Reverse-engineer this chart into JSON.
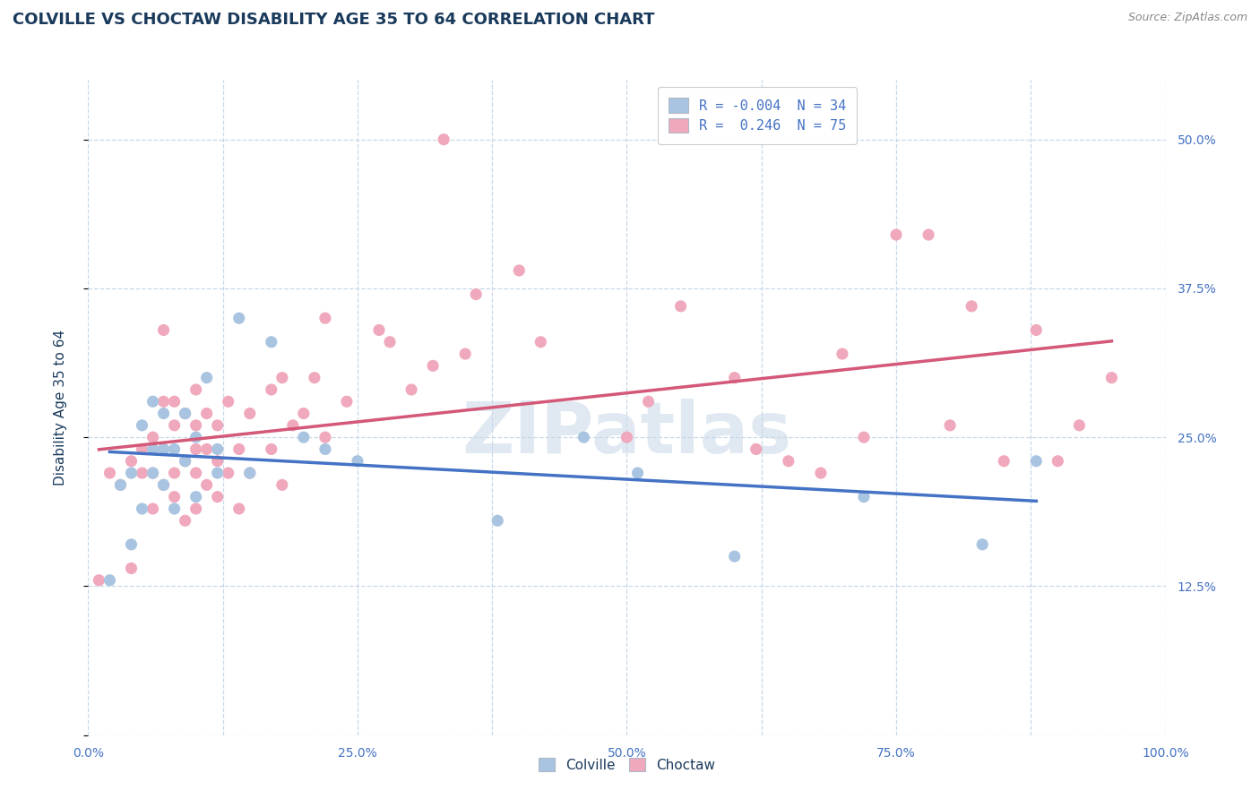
{
  "title": "COLVILLE VS CHOCTAW DISABILITY AGE 35 TO 64 CORRELATION CHART",
  "source_text": "Source: ZipAtlas.com",
  "ylabel": "Disability Age 35 to 64",
  "title_color": "#1a3a5c",
  "title_fontsize": 13,
  "watermark_text": "ZIPatlas",
  "colville_R": -0.004,
  "colville_N": 34,
  "choctaw_R": 0.246,
  "choctaw_N": 75,
  "colville_color": "#a8c4e0",
  "choctaw_color": "#f0a8bc",
  "colville_line_color": "#4472c4",
  "choctaw_line_color": "#d45878",
  "background_color": "#ffffff",
  "xlim": [
    0.0,
    1.0
  ],
  "ylim": [
    0.0,
    0.55
  ],
  "xtick_positions": [
    0.0,
    0.125,
    0.25,
    0.375,
    0.5,
    0.625,
    0.75,
    0.875,
    1.0
  ],
  "xticklabels": [
    "0.0%",
    "",
    "25.0%",
    "",
    "50.0%",
    "",
    "75.0%",
    "",
    "100.0%"
  ],
  "ytick_positions": [
    0.0,
    0.125,
    0.25,
    0.375,
    0.5
  ],
  "yticklabels": [
    "",
    "12.5%",
    "25.0%",
    "37.5%",
    "50.0%"
  ],
  "grid_color": "#c8d8e8",
  "colville_x": [
    0.02,
    0.03,
    0.04,
    0.04,
    0.05,
    0.05,
    0.06,
    0.06,
    0.06,
    0.07,
    0.07,
    0.07,
    0.08,
    0.08,
    0.09,
    0.09,
    0.1,
    0.1,
    0.11,
    0.12,
    0.12,
    0.14,
    0.15,
    0.17,
    0.2,
    0.22,
    0.25,
    0.38,
    0.46,
    0.51,
    0.6,
    0.72,
    0.83,
    0.88
  ],
  "colville_y": [
    0.13,
    0.21,
    0.16,
    0.22,
    0.19,
    0.26,
    0.22,
    0.24,
    0.28,
    0.21,
    0.24,
    0.27,
    0.19,
    0.24,
    0.23,
    0.27,
    0.2,
    0.25,
    0.3,
    0.22,
    0.24,
    0.35,
    0.22,
    0.33,
    0.25,
    0.24,
    0.23,
    0.18,
    0.25,
    0.22,
    0.15,
    0.2,
    0.16,
    0.23
  ],
  "choctaw_x": [
    0.01,
    0.02,
    0.03,
    0.04,
    0.04,
    0.05,
    0.05,
    0.06,
    0.06,
    0.06,
    0.07,
    0.07,
    0.07,
    0.07,
    0.08,
    0.08,
    0.08,
    0.08,
    0.09,
    0.09,
    0.09,
    0.1,
    0.1,
    0.1,
    0.1,
    0.1,
    0.11,
    0.11,
    0.11,
    0.12,
    0.12,
    0.12,
    0.13,
    0.13,
    0.14,
    0.14,
    0.15,
    0.15,
    0.17,
    0.17,
    0.18,
    0.18,
    0.19,
    0.2,
    0.21,
    0.22,
    0.22,
    0.24,
    0.27,
    0.28,
    0.3,
    0.32,
    0.33,
    0.35,
    0.36,
    0.4,
    0.42,
    0.5,
    0.52,
    0.55,
    0.6,
    0.62,
    0.65,
    0.68,
    0.7,
    0.72,
    0.75,
    0.78,
    0.8,
    0.82,
    0.85,
    0.88,
    0.9,
    0.92,
    0.95
  ],
  "choctaw_y": [
    0.13,
    0.22,
    0.21,
    0.14,
    0.23,
    0.22,
    0.24,
    0.19,
    0.22,
    0.25,
    0.21,
    0.24,
    0.28,
    0.34,
    0.2,
    0.22,
    0.26,
    0.28,
    0.18,
    0.23,
    0.27,
    0.19,
    0.22,
    0.24,
    0.26,
    0.29,
    0.21,
    0.24,
    0.27,
    0.2,
    0.23,
    0.26,
    0.22,
    0.28,
    0.19,
    0.24,
    0.22,
    0.27,
    0.24,
    0.29,
    0.21,
    0.3,
    0.26,
    0.27,
    0.3,
    0.25,
    0.35,
    0.28,
    0.34,
    0.33,
    0.29,
    0.31,
    0.5,
    0.32,
    0.37,
    0.39,
    0.33,
    0.25,
    0.28,
    0.36,
    0.3,
    0.24,
    0.23,
    0.22,
    0.32,
    0.25,
    0.42,
    0.42,
    0.26,
    0.36,
    0.23,
    0.34,
    0.23,
    0.26,
    0.3
  ],
  "legend_labels_top": [
    "R = -0.004  N = 34",
    "R =  0.246  N = 75"
  ],
  "legend_labels_bottom": [
    "Colville",
    "Choctaw"
  ],
  "tick_label_color": "#4472c4",
  "axis_label_color": "#1a3a5c",
  "source_color": "#888888"
}
